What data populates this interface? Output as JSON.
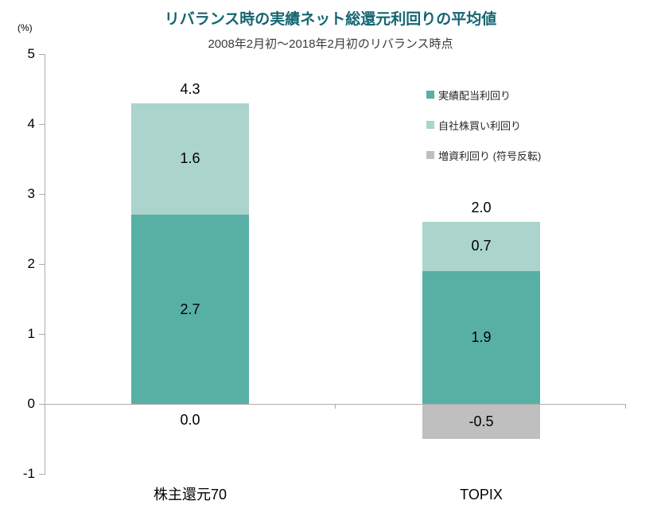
{
  "chart": {
    "title": "リバランス時の実績ネット総還元利回りの平均値",
    "subtitle": "2008年2月初～2018年2月初のリバランス時点",
    "y_unit": "(%)"
  },
  "colors": {
    "dividend": "#58b0a5",
    "buyback": "#aad4cc",
    "issuance": "#bfbfbf",
    "title_text": "#156570",
    "axis": "#adadad"
  },
  "legend": [
    {
      "label": "実績配当利回り",
      "color_key": "dividend"
    },
    {
      "label": "自社株買い利回り",
      "color_key": "buyback"
    },
    {
      "label": "増資利回り (符号反転)",
      "color_key": "issuance"
    }
  ],
  "chart_data": {
    "type": "bar",
    "stacked": true,
    "title": "リバランス時の実績ネット総還元利回りの平均値",
    "subtitle": "2008年2月初～2018年2月初のリバランス時点",
    "ylabel": "(%)",
    "xlabel": "",
    "categories": [
      "株主還元70",
      "TOPIX"
    ],
    "series": [
      {
        "name": "実績配当利回り",
        "color_key": "dividend",
        "values": [
          2.7,
          1.9
        ]
      },
      {
        "name": "自社株買い利回り",
        "color_key": "buyback",
        "values": [
          1.6,
          0.7
        ]
      },
      {
        "name": "増資利回り (符号反転)",
        "color_key": "issuance",
        "values": [
          0.0,
          -0.5
        ]
      }
    ],
    "segment_labels": [
      [
        "2.7",
        "1.6",
        "0.0"
      ],
      [
        "1.9",
        "0.7",
        "-0.5"
      ]
    ],
    "totals": [
      "4.3",
      "2.0"
    ],
    "ylim": [
      -1,
      5
    ],
    "yticks": [
      5,
      4,
      3,
      2,
      1,
      0,
      -1
    ],
    "grid": false,
    "legend_position": "upper right"
  }
}
